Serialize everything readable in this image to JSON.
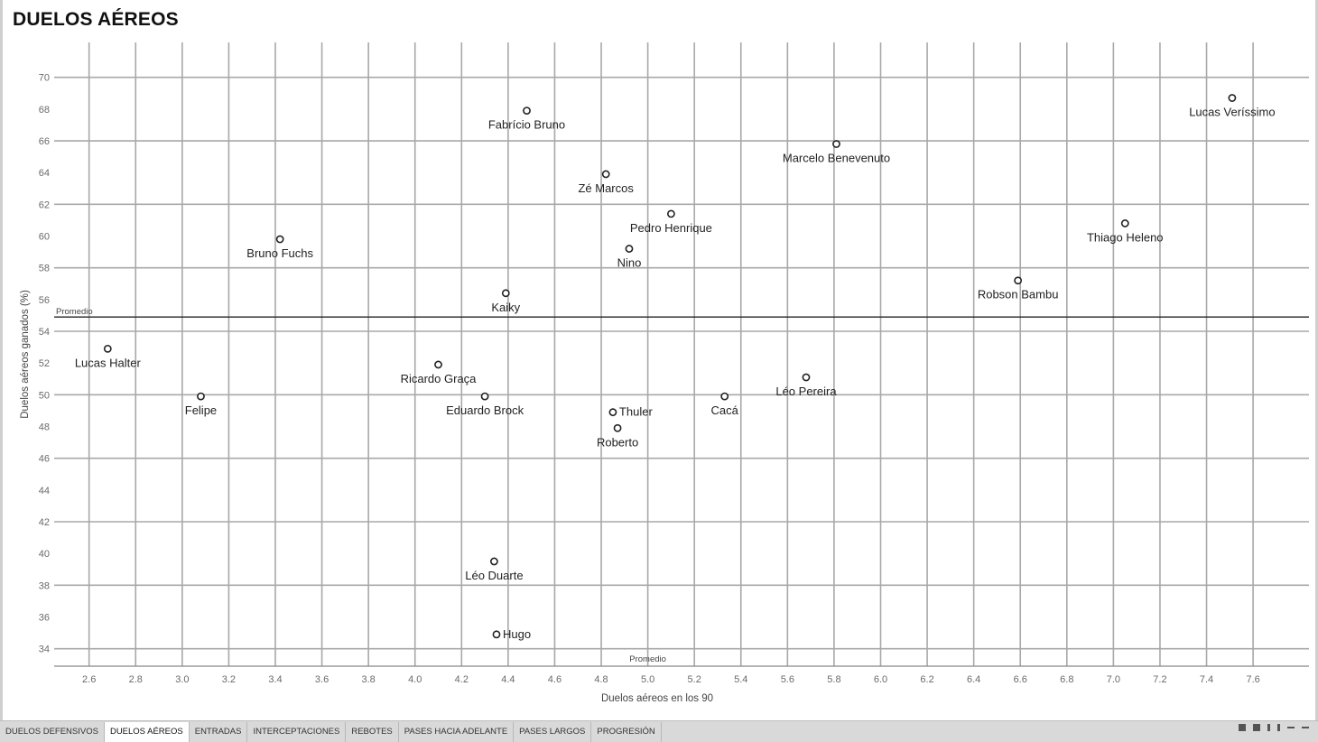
{
  "chart_data": {
    "type": "scatter",
    "title": "DUELOS AÉREOS",
    "xlabel": "Duelos aéreos en los 90",
    "ylabel": "Duelos aéreos ganados (%)",
    "xlim": [
      2.45,
      7.84
    ],
    "ylim": [
      32.9,
      72.2
    ],
    "x_ticks": [
      2.6,
      2.8,
      3.0,
      3.2,
      3.4,
      3.6,
      3.8,
      4.0,
      4.2,
      4.4,
      4.6,
      4.8,
      5.0,
      5.2,
      5.4,
      5.6,
      5.8,
      6.0,
      6.2,
      6.4,
      6.6,
      6.8,
      7.0,
      7.2,
      7.4,
      7.6
    ],
    "y_ticks": [
      34,
      36,
      38,
      40,
      42,
      44,
      46,
      48,
      50,
      52,
      54,
      56,
      58,
      60,
      62,
      64,
      66,
      68,
      70
    ],
    "grid": true,
    "reference_lines": [
      {
        "axis": "y",
        "value": 54.9,
        "label": "Promedio"
      },
      {
        "axis": "x",
        "value": 5.0,
        "label": "Promedio"
      }
    ],
    "points": [
      {
        "name": "Fabrício Bruno",
        "x": 4.48,
        "y": 67.9,
        "label_pos": "below"
      },
      {
        "name": "Lucas Veríssimo",
        "x": 7.51,
        "y": 68.7,
        "label_pos": "below"
      },
      {
        "name": "Marcelo Benevenuto",
        "x": 5.81,
        "y": 65.8,
        "label_pos": "below"
      },
      {
        "name": "Zé Marcos",
        "x": 4.82,
        "y": 63.9,
        "label_pos": "below"
      },
      {
        "name": "Pedro Henrique",
        "x": 5.1,
        "y": 61.4,
        "label_pos": "below"
      },
      {
        "name": "Thiago Heleno",
        "x": 7.05,
        "y": 60.8,
        "label_pos": "below"
      },
      {
        "name": "Bruno Fuchs",
        "x": 3.42,
        "y": 59.8,
        "label_pos": "below"
      },
      {
        "name": "Nino",
        "x": 4.92,
        "y": 59.2,
        "label_pos": "below"
      },
      {
        "name": "Robson Bambu",
        "x": 6.59,
        "y": 57.2,
        "label_pos": "below"
      },
      {
        "name": "Kaiky",
        "x": 4.39,
        "y": 56.4,
        "label_pos": "below"
      },
      {
        "name": "Lucas Halter",
        "x": 2.68,
        "y": 52.9,
        "label_pos": "below"
      },
      {
        "name": "Ricardo Graça",
        "x": 4.1,
        "y": 51.9,
        "label_pos": "below"
      },
      {
        "name": "Léo Pereira",
        "x": 5.68,
        "y": 51.1,
        "label_pos": "below"
      },
      {
        "name": "Felipe",
        "x": 3.08,
        "y": 49.9,
        "label_pos": "below"
      },
      {
        "name": "Eduardo Brock",
        "x": 4.3,
        "y": 49.9,
        "label_pos": "below"
      },
      {
        "name": "Cacá",
        "x": 5.33,
        "y": 49.9,
        "label_pos": "below"
      },
      {
        "name": "Thuler",
        "x": 4.85,
        "y": 48.9,
        "label_pos": "right"
      },
      {
        "name": "Roberto",
        "x": 4.87,
        "y": 47.9,
        "label_pos": "below"
      },
      {
        "name": "Léo Duarte",
        "x": 4.34,
        "y": 39.5,
        "label_pos": "below"
      },
      {
        "name": "Hugo",
        "x": 4.35,
        "y": 34.9,
        "label_pos": "right"
      }
    ]
  },
  "tabs": [
    {
      "label": "DUELOS DEFENSIVOS",
      "active": false
    },
    {
      "label": "DUELOS AÉREOS",
      "active": true
    },
    {
      "label": "ENTRADAS",
      "active": false
    },
    {
      "label": "INTERCEPTACIONES",
      "active": false
    },
    {
      "label": "REBOTES",
      "active": false
    },
    {
      "label": "PASES HACIA ADELANTE",
      "active": false
    },
    {
      "label": "PASES LARGOS",
      "active": false
    },
    {
      "label": "PROGRESIÓN",
      "active": false
    }
  ]
}
